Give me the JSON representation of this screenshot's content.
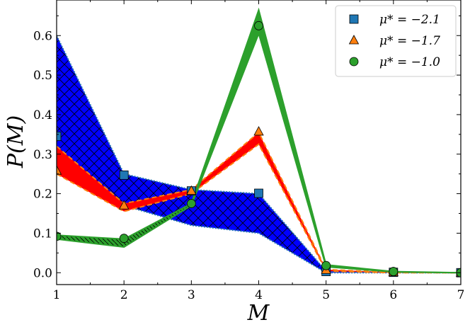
{
  "chart_data": {
    "type": "line",
    "xlabel": "M",
    "ylabel": "P(M)",
    "xlim": [
      1,
      7
    ],
    "ylim": [
      -0.03,
      0.69
    ],
    "xticks": [
      1,
      2,
      3,
      4,
      5,
      6,
      7
    ],
    "yticks": [
      "0.0",
      "0.1",
      "0.2",
      "0.3",
      "0.4",
      "0.5",
      "0.6"
    ],
    "grid": false,
    "legend_position": "top-right",
    "series": [
      {
        "name": "μ* = −2.1",
        "marker": "square",
        "color": "#1f77b4",
        "band_color": "#0000ff",
        "line_style": "dotted",
        "x": [
          1,
          2,
          3,
          4,
          5,
          6,
          7
        ],
        "values": [
          0.345,
          0.247,
          0.207,
          0.201,
          0.003,
          0.001,
          0.0
        ],
        "band_upper": [
          0.6,
          0.25,
          0.21,
          0.2,
          0.004,
          0.001,
          0.0
        ],
        "band_lower": [
          0.31,
          0.17,
          0.12,
          0.1,
          0.0,
          0.0,
          0.0
        ]
      },
      {
        "name": "μ* = −1.7",
        "marker": "triangle",
        "color": "#ff7f0e",
        "band_color": "#ff0000",
        "line_style": "dashed",
        "x": [
          1,
          2,
          3,
          4,
          5,
          6,
          7
        ],
        "values": [
          0.258,
          0.17,
          0.207,
          0.357,
          0.007,
          0.001,
          0.0
        ],
        "band_upper": [
          0.32,
          0.175,
          0.21,
          0.355,
          0.008,
          0.001,
          0.0
        ],
        "band_lower": [
          0.25,
          0.155,
          0.2,
          0.325,
          0.004,
          0.0,
          0.0
        ]
      },
      {
        "name": "μ* = −1.0",
        "marker": "circle",
        "color": "#2ca02c",
        "band_color": "#2ca02c",
        "line_style": "solid",
        "x": [
          1,
          2,
          3,
          4,
          5,
          6,
          7
        ],
        "values": [
          0.092,
          0.087,
          0.175,
          0.625,
          0.018,
          0.003,
          0.0
        ],
        "band_upper": [
          0.095,
          0.085,
          0.175,
          0.665,
          0.02,
          0.003,
          0.0
        ],
        "band_lower": [
          0.085,
          0.065,
          0.17,
          0.605,
          0.015,
          0.002,
          0.0
        ]
      }
    ]
  }
}
